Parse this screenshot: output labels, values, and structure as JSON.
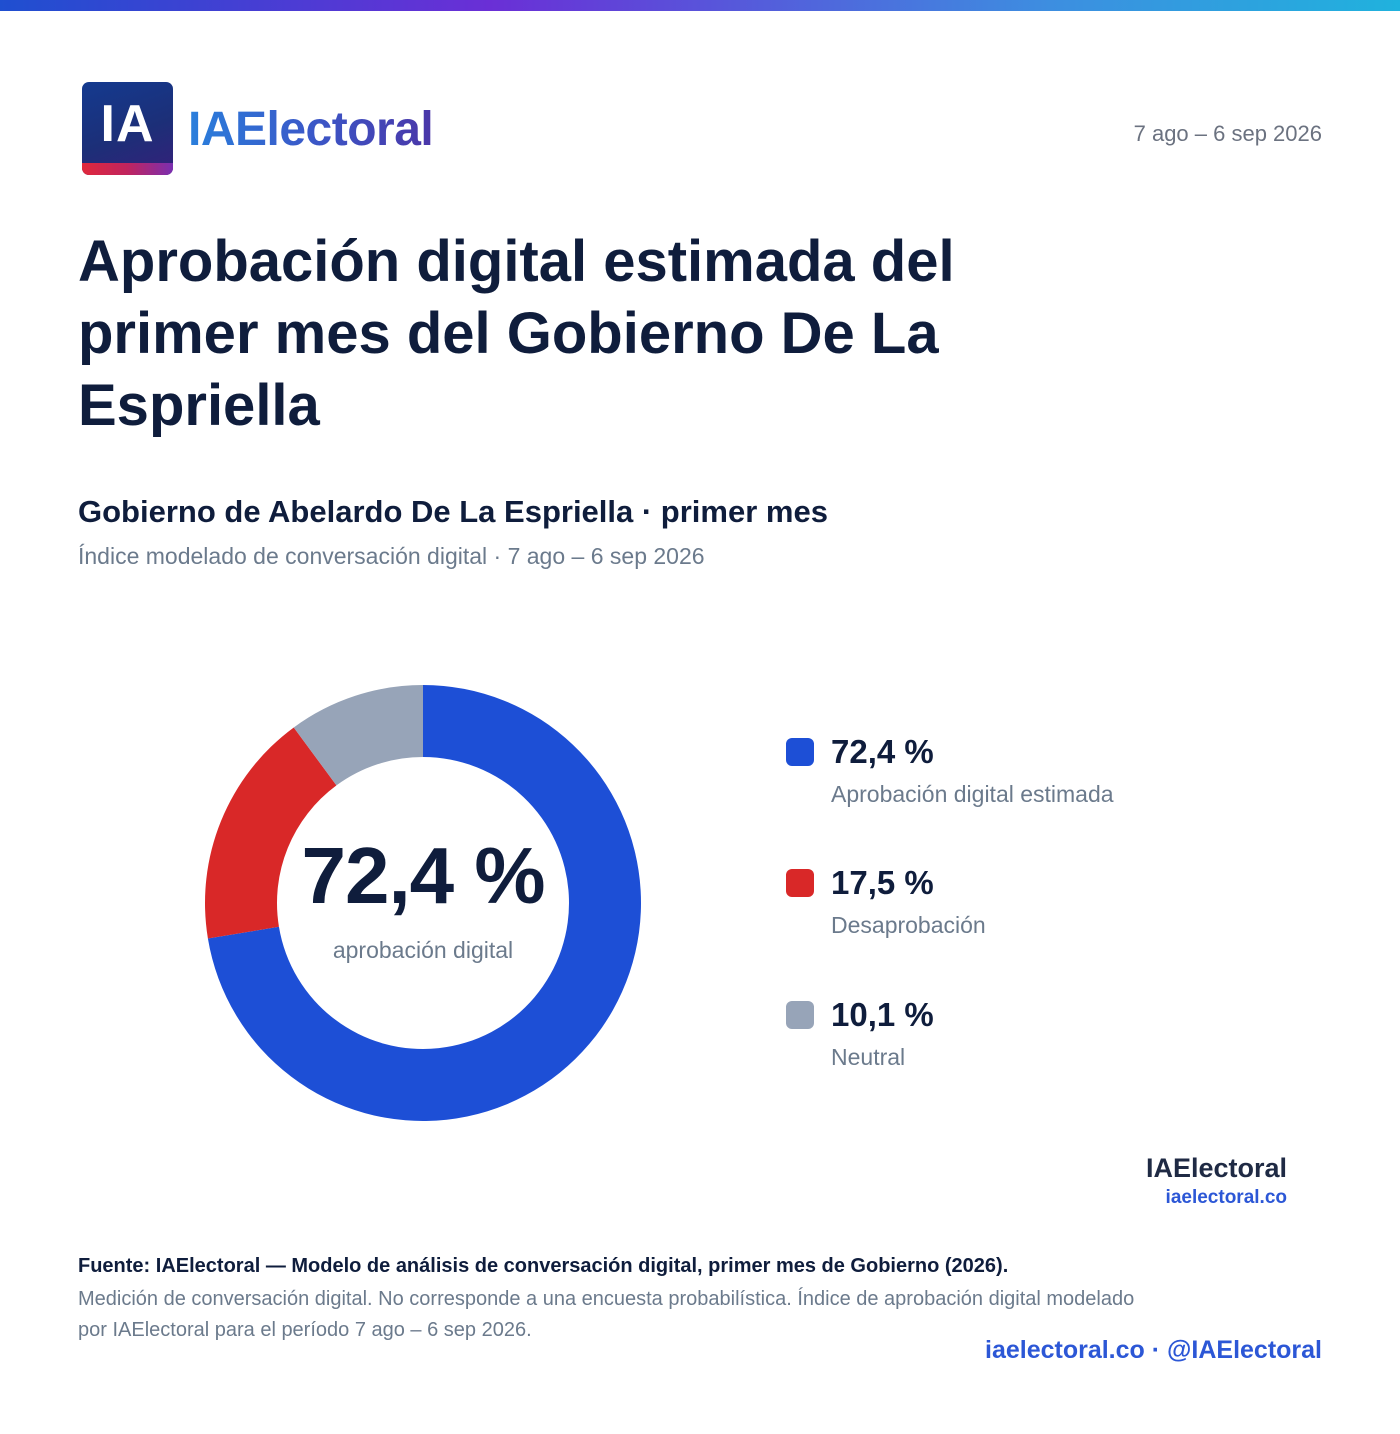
{
  "header": {
    "logo_letters": "IA",
    "logo_wordmark": "IAElectoral",
    "date_range": "7 ago – 6 sep 2026"
  },
  "title": "Aprobación digital estimada del primer mes del Gobierno De La Espriella",
  "subtitle": "Gobierno de Abelardo De La Espriella · primer mes",
  "subline": "Índice modelado de conversación digital · 7 ago – 6 sep 2026",
  "chart_data": {
    "type": "pie",
    "donut": true,
    "center_value": "72,4 %",
    "center_label": "aprobación digital",
    "slices": [
      {
        "label": "Aprobación digital estimada",
        "value": 72.4,
        "display": "72,4 %",
        "color": "#1d4fd6"
      },
      {
        "label": "Desaprobación",
        "value": 17.5,
        "display": "17,5 %",
        "color": "#d92828"
      },
      {
        "label": "Neutral",
        "value": 10.1,
        "display": "10,1 %",
        "color": "#97a4b8"
      }
    ],
    "legend_position": "right"
  },
  "brand": {
    "name": "IAElectoral",
    "url": "iaelectoral.co"
  },
  "source": {
    "title": "Fuente: IAElectoral — Modelo de análisis de conversación digital, primer mes de Gobierno (2026).",
    "note": "Medición de conversación digital. No corresponde a una encuesta probabilística. Índice de aprobación digital modelado por IAElectoral para el período 7 ago – 6 sep 2026."
  },
  "footer": "iaelectoral.co · @IAElectoral"
}
